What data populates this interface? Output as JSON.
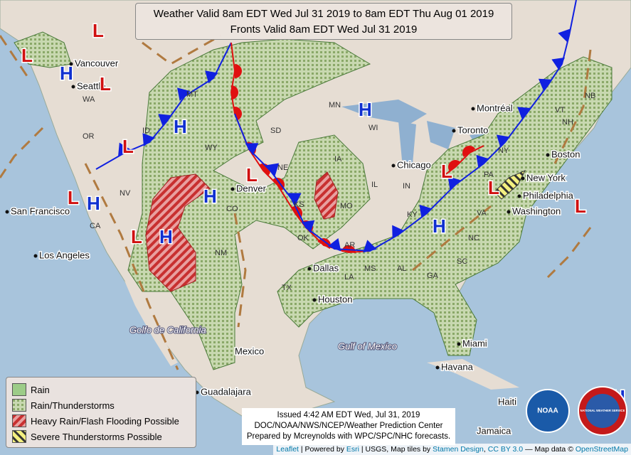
{
  "header": {
    "lines": [
      "Weather Valid 8am EDT Wed Jul 31 2019 to 8am EDT Thu Aug 01 2019",
      "Fronts Valid 8am EDT Wed Jul 31 2019"
    ]
  },
  "legend": {
    "items": [
      "Rain",
      "Rain/Thunderstorms",
      "Heavy Rain/Flash Flooding Possible",
      "Severe Thunderstorms Possible"
    ]
  },
  "issued": {
    "lines": [
      "Issued 4:42 AM EDT Wed, Jul 31, 2019",
      "DOC/NOAA/NWS/NCEP/Weather Prediction Center",
      "Prepared by Mcreynolds with WPC/SPC/NHC forecasts."
    ]
  },
  "attribution": {
    "parts": [
      "Leaflet",
      "| Powered by",
      "Esri",
      "| USGS, Map tiles by",
      "Stamen Design",
      ",",
      "CC BY 3.0",
      "— Map data ©",
      "OpenStreetMap"
    ]
  },
  "logos": {
    "noaa": "NOAA",
    "nws": "NATIONAL WEATHER SERVICE"
  },
  "pressure_centers": [
    "L",
    "L",
    "L",
    "L",
    "L",
    "L",
    "L",
    "L",
    "L",
    "L",
    "H",
    "H",
    "H",
    "H",
    "H",
    "H",
    "H",
    "H"
  ],
  "cities": [
    "Vancouver",
    "Seattle",
    "San Francisco",
    "Los Angeles",
    "Denver",
    "Dallas",
    "Houston",
    "Chicago",
    "Toronto",
    "Montréal",
    "New York",
    "Philadelphia",
    "Washington",
    "Boston",
    "Miami",
    "Havana",
    "Mexico",
    "Guadalajara",
    "Jamaica",
    "Haiti"
  ],
  "water": [
    "Golfo de California",
    "Gulf of Mexico"
  ],
  "states": [
    "WA",
    "OR",
    "ID",
    "MT",
    "WY",
    "NV",
    "CA",
    "CO",
    "NM",
    "SD",
    "NE",
    "KS",
    "OK",
    "TX",
    "MN",
    "IA",
    "MO",
    "AR",
    "LA",
    "WI",
    "IL",
    "IN",
    "KY",
    "MS",
    "AL",
    "GA",
    "SC",
    "NC",
    "VA",
    "PA",
    "NY",
    "VT",
    "NH",
    "NB"
  ]
}
